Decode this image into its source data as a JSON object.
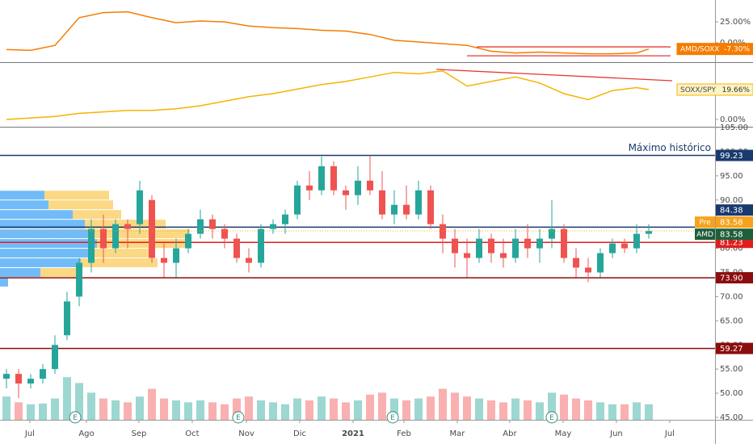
{
  "chart_data": [
    {
      "type": "line",
      "xlim": [
        -0.533,
        58.467
      ],
      "ylim": [
        -23,
        51
      ],
      "yticks": [
        {
          "value": 25,
          "label": "25.00%"
        },
        {
          "value": 0,
          "label": "0.00%"
        }
      ],
      "series": [
        {
          "name": "AMD/SOXX",
          "color": "#f57c00",
          "x": [
            0,
            2,
            4,
            6,
            8,
            10,
            12,
            14,
            16,
            18,
            20,
            22,
            24,
            26,
            28,
            30,
            32,
            34,
            36,
            38,
            40,
            42,
            44,
            46,
            48,
            50,
            52,
            53
          ],
          "values": [
            -8,
            -9,
            -3,
            30,
            36,
            37,
            30,
            24,
            26,
            25,
            20,
            18,
            17,
            15,
            14,
            10,
            3,
            1,
            -1,
            -3,
            -10,
            -12,
            -11,
            -12,
            -13,
            -13,
            -12,
            -7.3
          ],
          "last_value": -7.3,
          "last_label": "-7.30%"
        }
      ],
      "trendlines": [
        {
          "color": "#e53935",
          "x": [
            38.8,
            54.8
          ],
          "values": [
            -4.8,
            -4.8
          ]
        },
        {
          "color": "#e53935",
          "x": [
            38,
            54.8
          ],
          "values": [
            -15.4,
            -15.4
          ]
        }
      ]
    },
    {
      "type": "line",
      "xlim": [
        -0.533,
        58.467
      ],
      "ylim": [
        -4.8,
        37.2
      ],
      "yticks": [
        {
          "value": 0,
          "label": "0.00%"
        }
      ],
      "series": [
        {
          "name": "SOXX/SPY",
          "color": "#f5b400",
          "x": [
            0,
            2,
            4,
            6,
            8,
            10,
            12,
            14,
            16,
            18,
            20,
            22,
            24,
            26,
            28,
            30,
            32,
            34,
            36,
            38,
            40,
            42,
            44,
            46,
            48,
            50,
            52,
            53
          ],
          "values": [
            0,
            1,
            2,
            4,
            5,
            6,
            6,
            7,
            9,
            12,
            15,
            17,
            20,
            23,
            25,
            28,
            31,
            30,
            32,
            22,
            25,
            28,
            24,
            17,
            13,
            19,
            21,
            19.66
          ],
          "last_value": 19.66,
          "last_label": "19.66%"
        }
      ],
      "trendlines": [
        {
          "color": "#e53935",
          "x": [
            35.47,
            54.93
          ],
          "values": [
            33,
            25.5
          ]
        }
      ]
    },
    {
      "type": "candlestick",
      "xlim": [
        -0.533,
        58.467
      ],
      "ylim": [
        44.5,
        105
      ],
      "yticks": [
        {
          "value": 45,
          "label": "45.00"
        },
        {
          "value": 50,
          "label": "50.00"
        },
        {
          "value": 55,
          "label": "55.00"
        },
        {
          "value": 60,
          "label": "60.00"
        },
        {
          "value": 65,
          "label": "65.00"
        },
        {
          "value": 70,
          "label": "70.00"
        },
        {
          "value": 75,
          "label": "75.00"
        },
        {
          "value": 80,
          "label": "80.00"
        },
        {
          "value": 85,
          "label": "85.00"
        },
        {
          "value": 90,
          "label": "90.00"
        },
        {
          "value": 95,
          "label": "95.00"
        },
        {
          "value": 100,
          "label": "100.00"
        },
        {
          "value": 105,
          "label": "105.00"
        }
      ],
      "xticks": [
        {
          "value": 1.93,
          "label": "Jul"
        },
        {
          "value": 6.6,
          "label": "Ago"
        },
        {
          "value": 10.93,
          "label": "Sep"
        },
        {
          "value": 15.33,
          "label": "Oct"
        },
        {
          "value": 19.8,
          "label": "Nov"
        },
        {
          "value": 24.2,
          "label": "Dic"
        },
        {
          "value": 28.6,
          "label": "2021"
        },
        {
          "value": 32.8,
          "label": "Feb"
        },
        {
          "value": 37.2,
          "label": "Mar"
        },
        {
          "value": 41.53,
          "label": "Abr"
        },
        {
          "value": 45.93,
          "label": "May"
        },
        {
          "value": 50.33,
          "label": "Jun"
        },
        {
          "value": 54.73,
          "label": "Jul"
        }
      ],
      "up_color": "#26a69a",
      "down_color": "#ef5350",
      "open": [
        53,
        54,
        52,
        53,
        55,
        62,
        70,
        77,
        84,
        80,
        85,
        85,
        90,
        78,
        77,
        80,
        83,
        86,
        84,
        82,
        78,
        77,
        84,
        85,
        87,
        93,
        92,
        97,
        92,
        91,
        94,
        92,
        87,
        89,
        87,
        92,
        85,
        82,
        79,
        78,
        82,
        79,
        78,
        82,
        80,
        82,
        84,
        78,
        76,
        75,
        79,
        81,
        80,
        83
      ],
      "high": [
        55,
        55,
        54,
        56,
        62,
        71,
        78,
        86,
        87,
        86,
        86,
        94,
        91,
        81,
        82,
        84,
        88,
        87,
        85,
        83,
        80,
        85,
        86,
        88,
        94,
        96,
        99,
        98,
        93,
        97,
        99.23,
        96,
        92,
        93,
        94,
        93,
        87,
        84,
        82,
        84,
        83,
        82,
        84,
        85,
        84,
        90,
        85,
        80,
        78,
        80,
        82,
        82,
        85,
        85
      ],
      "low": [
        51,
        49,
        51,
        52,
        54,
        61,
        68,
        75,
        77,
        79,
        80,
        83,
        77,
        74,
        74,
        79,
        82,
        82,
        80,
        77,
        75,
        76,
        83,
        83,
        86,
        90,
        91,
        91,
        88,
        89,
        91,
        86,
        85,
        86,
        86,
        84,
        79,
        76,
        74,
        77,
        77,
        76,
        77,
        78,
        77,
        80,
        77,
        74,
        73,
        74,
        78,
        79,
        79,
        82
      ],
      "close": [
        54,
        52,
        53,
        55,
        60,
        69,
        77,
        84,
        80,
        85,
        84,
        92,
        78,
        77,
        80,
        83,
        86,
        84,
        82,
        78,
        77,
        84,
        85,
        87,
        93,
        92,
        97,
        92,
        91,
        94,
        92,
        87,
        89,
        87,
        92,
        85,
        82,
        79,
        78,
        82,
        79,
        78,
        82,
        80,
        82,
        84,
        78,
        76,
        75,
        79,
        81,
        80,
        83,
        83.58
      ],
      "volume": [
        60,
        45,
        40,
        42,
        55,
        110,
        95,
        70,
        55,
        50,
        45,
        60,
        80,
        55,
        50,
        45,
        50,
        45,
        40,
        55,
        60,
        50,
        45,
        40,
        55,
        50,
        60,
        55,
        45,
        50,
        65,
        70,
        55,
        50,
        55,
        60,
        80,
        70,
        60,
        55,
        50,
        45,
        55,
        50,
        45,
        70,
        65,
        55,
        50,
        45,
        40,
        40,
        45,
        40
      ],
      "volume_lim": [
        0,
        250
      ],
      "volume_profile": {
        "prices": [
          72,
          74,
          76,
          78,
          80,
          82,
          84,
          86,
          88,
          90
        ],
        "up": [
          10,
          50,
          100,
          110,
          120,
          110,
          105,
          90,
          60,
          55
        ],
        "down": [
          0,
          45,
          95,
          80,
          115,
          125,
          100,
          60,
          80,
          80
        ],
        "lim": [
          0,
          885
        ],
        "up_color": "#42a5f5",
        "down_color": "#f9c74f"
      },
      "levels": [
        {
          "value": 99.23,
          "label": "99.23",
          "color": "#1a3a6e",
          "note": "Máximo histórico"
        },
        {
          "value": 84.38,
          "label": "84.38",
          "color": "#1a3a6e"
        },
        {
          "value": 81.23,
          "label": "81.23",
          "color": "#e01e1e"
        },
        {
          "value": 73.9,
          "label": "73.90",
          "color": "#8b0d0d"
        },
        {
          "value": 59.27,
          "label": "59.27",
          "color": "#8b0d0d"
        }
      ],
      "price_tags": [
        {
          "name": "Pre",
          "value": 83.58,
          "label": "83.58",
          "color": "#f7a21b"
        },
        {
          "name": "AMD",
          "value": 83.58,
          "label": "83.58",
          "color": "#1e5e3a"
        }
      ],
      "earnings": {
        "label": "E",
        "x": [
          5.67,
          19.13,
          31.87,
          45
        ]
      }
    }
  ]
}
